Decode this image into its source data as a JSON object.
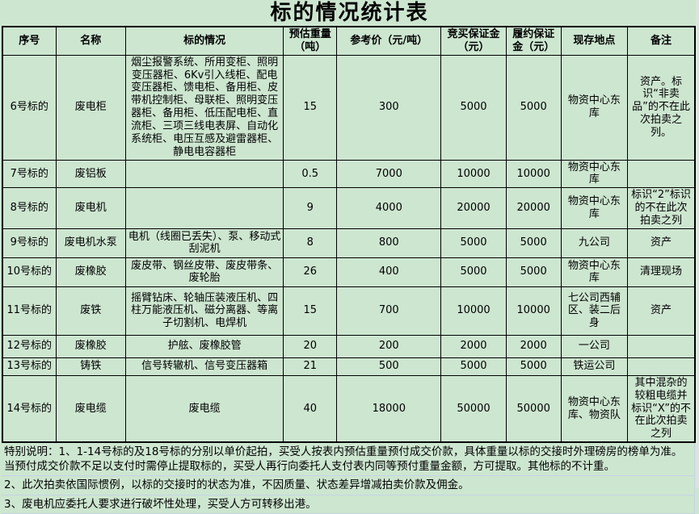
{
  "title": "标的情况统计表",
  "table": {
    "headers": [
      "序号",
      "名称",
      "标的情况",
      "预估重量（吨）",
      "参考价（元/吨）",
      "竞买保证金（元）",
      "履约保证金（元）",
      "现存地点",
      "备注"
    ],
    "rows": [
      [
        "6号标的",
        "废电柜",
        "烟尘报警系统、所用变柜、照明变压器柜、6Kv引入线柜、配电变压器柜、馈电柜、备用柜、皮带机控制柜、母联柜、照明变压器柜、备用柜、低压配电柜、直流柜、三项三线电表屏、自动化系统柜、电压互感及避雷器柜、静电电容器柜",
        "15",
        "300",
        "5000",
        "5000",
        "物资中心东库",
        "资产。标识“非卖品”的不在此次拍卖之列。"
      ],
      [
        "7号标的",
        "废铝板",
        "",
        "0.5",
        "7000",
        "10000",
        "10000",
        "物资中心东库",
        ""
      ],
      [
        "8号标的",
        "废电机",
        "",
        "9",
        "4000",
        "20000",
        "20000",
        "物资中心东库",
        "标识“2”标识的不在此次拍卖之列"
      ],
      [
        "9号标的",
        "废电机水泵",
        "电机（线圈已丢失）、泵、移动式刮泥机",
        "8",
        "800",
        "5000",
        "5000",
        "九公司",
        "资产"
      ],
      [
        "10号标的",
        "废橡胶",
        "废皮带、钢丝皮带、废皮带条、废轮胎",
        "26",
        "400",
        "5000",
        "5000",
        "物资中心东库",
        "清理现场"
      ],
      [
        "11号标的",
        "废铁",
        "摇臂钻床、轮轴压装液压机、四柱万能液压机、磁分离器、等离子切割机、电焊机",
        "15",
        "700",
        "10000",
        "10000",
        "七公司西辅区、装二后身",
        "资产"
      ],
      [
        "12号标的",
        "废橡胶",
        "护舷、废橡胶管",
        "20",
        "200",
        "2000",
        "2000",
        "一公司",
        ""
      ],
      [
        "13号标的",
        "铸铁",
        "信号转辙机、信号变压器箱",
        "21",
        "500",
        "5000",
        "5000",
        "铁运公司",
        ""
      ],
      [
        "14号标的",
        "废电缆",
        "废电缆",
        "40",
        "18000",
        "50000",
        "50000",
        "物资中心东库、物资队",
        "其中混杂的较粗电缆并标识“X”的不在此次拍卖之列"
      ]
    ]
  },
  "notes": [
    "特别说明：1、1-14号标的及18号标的分别以单价起拍，买受人按表内预估重量预付成交价款，具体重量以标的交接时外理磅房的榜单为准。当预付成交价款不足以支付时需停止提取标的，买受人再行向委托人支付表内同等预付重量金额，方可提取。其他标的不计重。",
    "2、此次拍卖依国际惯例，以标的交接时的状态为准，不因质量、状态差异增减拍卖价款及佣金。",
    "3、废电机应委托人要求进行破坏性处理，买受人方可转移出港。"
  ],
  "colors": {
    "background": "#cde6d0",
    "table_border": "#000000",
    "gridline": "#c6d4e6"
  }
}
